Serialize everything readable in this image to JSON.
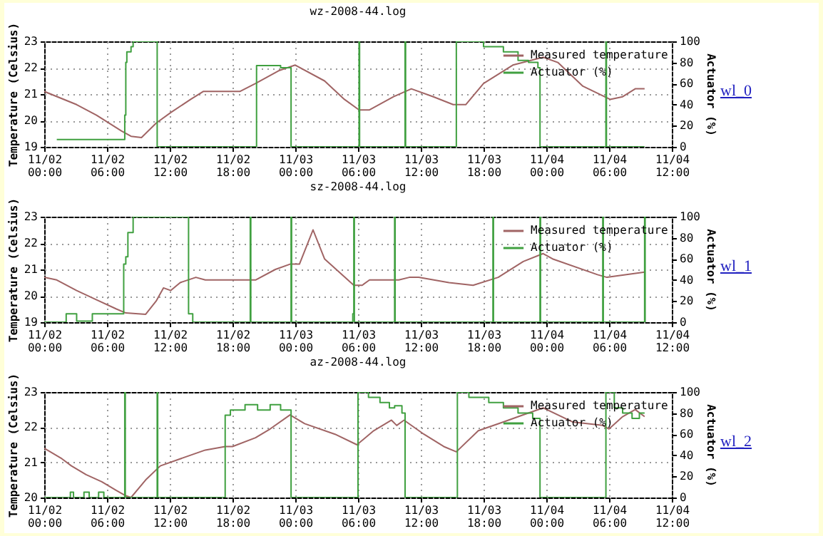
{
  "chart_data": [
    {
      "type": "line",
      "title": "wz-2008-44.log",
      "ylabel": "Temperature (Celsius)",
      "y2label": "Actuator (%)",
      "xlim": [
        "--11-02T00:00",
        "--11-04T12:00"
      ],
      "xticks": [
        {
          "value": "--11-02T00:00",
          "label": "11/02\n00:00"
        },
        {
          "value": "--11-02T06:00",
          "label": "11/02\n06:00"
        },
        {
          "value": "--11-02T12:00",
          "label": "11/02\n12:00"
        },
        {
          "value": "--11-02T18:00",
          "label": "11/02\n18:00"
        },
        {
          "value": "--11-03T00:00",
          "label": "11/03\n00:00"
        },
        {
          "value": "--11-03T06:00",
          "label": "11/03\n06:00"
        },
        {
          "value": "--11-03T12:00",
          "label": "11/03\n12:00"
        },
        {
          "value": "--11-03T18:00",
          "label": "11/03\n18:00"
        },
        {
          "value": "--11-04T00:00",
          "label": "11/04\n00:00"
        },
        {
          "value": "--11-04T06:00",
          "label": "11/04\n06:00"
        },
        {
          "value": "--11-04T12:00",
          "label": "11/04\n12:00"
        }
      ],
      "ylim": [
        19,
        23
      ],
      "yticks": [
        19,
        20,
        21,
        22,
        23
      ],
      "y2lim": [
        0,
        100
      ],
      "y2ticks": [
        0,
        20,
        40,
        60,
        80,
        100
      ],
      "grid": true,
      "legend": "top right",
      "annotations": [
        "wl_0"
      ],
      "series": [
        {
          "name": "Measured temperature",
          "type": "line",
          "color": "#a06464",
          "x": [
            "--11-02T00:00",
            "--11-02T03:06",
            "--11-02T05:00",
            "--11-02T07:24",
            "--11-02T08:18",
            "--11-02T09:18",
            "--11-02T10:42",
            "--11-02T12:06",
            "--11-02T14:00",
            "--11-02T15:12",
            "--11-02T18:42",
            "--11-02T20:12",
            "--11-02T22:30",
            "--11-03T00:00",
            "--11-03T02:48",
            "--11-03T04:42",
            "--11-03T06:06",
            "--11-03T07:06",
            "--11-03T09:24",
            "--11-03T11:06",
            "--11-03T13:12",
            "--11-03T15:06",
            "--11-03T16:18",
            "--11-03T18:00",
            "--11-03T20:48",
            "--11-03T23:42",
            "--11-04T01:06",
            "--11-04T03:30",
            "--11-04T06:06",
            "--11-04T07:18",
            "--11-04T08:30",
            "--11-04T09:24"
          ],
          "values": [
            21.1,
            20.6,
            20.2,
            19.6,
            19.4,
            19.35,
            19.9,
            20.3,
            20.8,
            21.1,
            21.1,
            21.4,
            21.9,
            22.1,
            21.5,
            20.8,
            20.4,
            20.4,
            20.9,
            21.2,
            20.9,
            20.6,
            20.6,
            21.4,
            22.1,
            22.4,
            22.2,
            21.3,
            20.8,
            20.9,
            21.2,
            21.2
          ]
        },
        {
          "name": "Actuator (%)",
          "type": "step",
          "axis": "y2",
          "color": "#40a040",
          "x": [
            "--11-02T01:12",
            "--11-02T07:42",
            "--11-02T07:48",
            "--11-02T07:54",
            "--11-02T08:18",
            "--11-02T08:30",
            "--11-02T10:48",
            "--11-02T20:18",
            "--11-02T22:36",
            "--11-02T23:36",
            "--11-03T06:06",
            "--11-03T06:09",
            "--11-03T10:30",
            "--11-03T10:33",
            "--11-03T15:24",
            "--11-03T18:00",
            "--11-03T19:54",
            "--11-03T21:18",
            "--11-03T22:18",
            "--11-03T23:12",
            "--11-03T23:24",
            "--11-04T05:42",
            "--11-04T05:45",
            "--11-04T09:24"
          ],
          "values": [
            7,
            30,
            80,
            90,
            95,
            100,
            0,
            77,
            75,
            0,
            100,
            0,
            100,
            0,
            100,
            95,
            90,
            82,
            80,
            75,
            0,
            100,
            0,
            0
          ]
        }
      ]
    },
    {
      "type": "line",
      "title": "sz-2008-44.log",
      "ylabel": "Temperature (Celsius)",
      "y2label": "Actuator (%)",
      "xlim": [
        "--11-02T00:00",
        "--11-04T12:00"
      ],
      "xticks": [
        {
          "value": "--11-02T00:00",
          "label": "11/02\n00:00"
        },
        {
          "value": "--11-02T06:00",
          "label": "11/02\n06:00"
        },
        {
          "value": "--11-02T12:00",
          "label": "11/02\n12:00"
        },
        {
          "value": "--11-02T18:00",
          "label": "11/02\n18:00"
        },
        {
          "value": "--11-03T00:00",
          "label": "11/03\n00:00"
        },
        {
          "value": "--11-03T06:00",
          "label": "11/03\n06:00"
        },
        {
          "value": "--11-03T12:00",
          "label": "11/03\n12:00"
        },
        {
          "value": "--11-03T18:00",
          "label": "11/03\n18:00"
        },
        {
          "value": "--11-04T00:00",
          "label": "11/04\n00:00"
        },
        {
          "value": "--11-04T06:00",
          "label": "11/04\n06:00"
        },
        {
          "value": "--11-04T12:00",
          "label": "11/04\n12:00"
        }
      ],
      "ylim": [
        19,
        23
      ],
      "yticks": [
        19,
        20,
        21,
        22,
        23
      ],
      "y2lim": [
        0,
        100
      ],
      "y2ticks": [
        0,
        20,
        40,
        60,
        80,
        100
      ],
      "grid": true,
      "legend": "top right",
      "annotations": [
        "wl_1"
      ],
      "series": [
        {
          "name": "Measured temperature",
          "type": "line",
          "color": "#a06464",
          "x": [
            "--11-02T00:00",
            "--11-02T01:12",
            "--11-02T03:06",
            "--11-02T05:00",
            "--11-02T06:54",
            "--11-02T07:48",
            "--11-02T09:42",
            "--11-02T10:42",
            "--11-02T11:24",
            "--11-02T12:06",
            "--11-02T13:00",
            "--11-02T14:30",
            "--11-02T15:24",
            "--11-02T20:12",
            "--11-02T22:06",
            "--11-02T23:30",
            "--11-03T00:24",
            "--11-03T01:42",
            "--11-03T02:48",
            "--11-03T04:12",
            "--11-03T05:36",
            "--11-03T06:24",
            "--11-03T07:06",
            "--11-03T09:54",
            "--11-03T10:54",
            "--11-03T11:48",
            "--11-03T14:42",
            "--11-03T17:00",
            "--11-03T19:24",
            "--11-03T21:48",
            "--11-03T23:42",
            "--11-04T00:36",
            "--11-04T04:54",
            "--11-04T05:48",
            "--11-04T09:24"
          ],
          "values": [
            20.7,
            20.6,
            20.2,
            19.85,
            19.5,
            19.35,
            19.3,
            19.8,
            20.3,
            20.2,
            20.5,
            20.7,
            20.6,
            20.6,
            21,
            21.2,
            21.2,
            22.5,
            21.4,
            20.9,
            20.4,
            20.4,
            20.6,
            20.6,
            20.7,
            20.7,
            20.5,
            20.4,
            20.7,
            21.3,
            21.6,
            21.4,
            20.8,
            20.7,
            20.9
          ]
        },
        {
          "name": "Actuator (%)",
          "type": "step",
          "axis": "y2",
          "color": "#40a040",
          "x": [
            "--11-02T00:00",
            "--11-02T02:06",
            "--11-02T03:06",
            "--11-02T04:36",
            "--11-02T07:36",
            "--11-02T07:48",
            "--11-02T08:00",
            "--11-02T08:30",
            "--11-02T13:48",
            "--11-02T14:12",
            "--11-02T19:42",
            "--11-02T19:45",
            "--11-02T23:36",
            "--11-02T23:39",
            "--11-03T05:30",
            "--11-03T05:36",
            "--11-03T05:39",
            "--11-03T09:30",
            "--11-03T09:33",
            "--11-03T18:54",
            "--11-03T18:57",
            "--11-03T23:24",
            "--11-03T23:27",
            "--11-04T05:24",
            "--11-04T05:27",
            "--11-04T09:24",
            "--11-04T09:27"
          ],
          "values": [
            0,
            8,
            1,
            8,
            55,
            62,
            85,
            100,
            8,
            0,
            100,
            0,
            100,
            0,
            8,
            100,
            0,
            100,
            0,
            100,
            0,
            100,
            0,
            100,
            0,
            100,
            0
          ]
        }
      ]
    },
    {
      "type": "line",
      "title": "az-2008-44.log",
      "ylabel": "Temperature (Celsius)",
      "y2label": "Actuator (%)",
      "xlim": [
        "--11-02T00:00",
        "--11-04T12:00"
      ],
      "xticks": [
        {
          "value": "--11-02T00:00",
          "label": "11/02\n00:00"
        },
        {
          "value": "--11-02T06:00",
          "label": "11/02\n06:00"
        },
        {
          "value": "--11-02T12:00",
          "label": "11/02\n12:00"
        },
        {
          "value": "--11-02T18:00",
          "label": "11/02\n18:00"
        },
        {
          "value": "--11-03T00:00",
          "label": "11/03\n00:00"
        },
        {
          "value": "--11-03T06:00",
          "label": "11/03\n06:00"
        },
        {
          "value": "--11-03T12:00",
          "label": "11/03\n12:00"
        },
        {
          "value": "--11-03T18:00",
          "label": "11/03\n18:00"
        },
        {
          "value": "--11-04T00:00",
          "label": "11/04\n00:00"
        },
        {
          "value": "--11-04T06:00",
          "label": "11/04\n06:00"
        },
        {
          "value": "--11-04T12:00",
          "label": "11/04\n12:00"
        }
      ],
      "ylim": [
        20,
        23
      ],
      "yticks": [
        20,
        21,
        22,
        23
      ],
      "y2lim": [
        0,
        100
      ],
      "y2ticks": [
        0,
        20,
        40,
        60,
        80,
        100
      ],
      "grid": true,
      "legend": "top right",
      "annotations": [
        "wl_2"
      ],
      "series": [
        {
          "name": "Measured temperature",
          "type": "line",
          "color": "#a06464",
          "x": [
            "--11-02T00:00",
            "--11-02T01:42",
            "--11-02T02:36",
            "--11-02T04:00",
            "--11-02T05:30",
            "--11-02T06:54",
            "--11-02T07:48",
            "--11-02T08:18",
            "--11-02T09:42",
            "--11-02T11:06",
            "--11-02T13:00",
            "--11-02T15:24",
            "--11-02T17:18",
            "--11-02T18:00",
            "--11-02T20:12",
            "--11-02T21:36",
            "--11-02T23:30",
            "--11-03T00:54",
            "--11-03T03:48",
            "--11-03T05:54",
            "--11-03T07:30",
            "--11-03T09:12",
            "--11-03T09:42",
            "--11-03T10:24",
            "--11-03T12:18",
            "--11-03T14:12",
            "--11-03T15:24",
            "--11-03T17:30",
            "--11-03T19:54",
            "--11-03T21:48",
            "--11-03T23:42",
            "--11-04T02:30",
            "--11-04T05:24",
            "--11-04T06:00",
            "--11-04T07:18",
            "--11-04T08:30",
            "--11-04T09:24"
          ],
          "values": [
            21.4,
            21.1,
            20.9,
            20.65,
            20.45,
            20.2,
            20.05,
            20,
            20.5,
            20.9,
            21.1,
            21.35,
            21.45,
            21.45,
            21.7,
            21.95,
            22.35,
            22.1,
            21.8,
            21.5,
            21.9,
            22.2,
            22.05,
            22.2,
            21.8,
            21.45,
            21.3,
            21.9,
            22.15,
            22.35,
            22.55,
            22.15,
            22.05,
            21.95,
            22.3,
            22.5,
            22.3
          ]
        },
        {
          "name": "Actuator (%)",
          "type": "step",
          "axis": "y2",
          "color": "#40a040",
          "x": [
            "--11-02T00:00",
            "--11-02T02:30",
            "--11-02T02:48",
            "--11-02T03:48",
            "--11-02T04:18",
            "--11-02T05:12",
            "--11-02T05:42",
            "--11-02T07:42",
            "--11-02T07:45",
            "--11-02T10:48",
            "--11-02T10:51",
            "--11-02T17:18",
            "--11-02T17:48",
            "--11-02T19:12",
            "--11-02T20:24",
            "--11-02T21:36",
            "--11-02T22:36",
            "--11-02T23:36",
            "--11-03T06:00",
            "--11-03T07:00",
            "--11-03T08:06",
            "--11-03T09:00",
            "--11-03T09:30",
            "--11-03T10:12",
            "--11-03T10:30",
            "--11-03T15:30",
            "--11-03T16:36",
            "--11-03T18:30",
            "--11-03T19:54",
            "--11-03T21:18",
            "--11-03T22:42",
            "--11-03T23:24",
            "--11-04T05:42",
            "--11-04T06:30",
            "--11-04T07:18",
            "--11-04T08:12",
            "--11-04T08:54",
            "--11-04T09:24"
          ],
          "values": [
            0,
            5,
            0,
            5,
            0,
            5,
            0,
            100,
            0,
            100,
            0,
            78,
            83,
            88,
            83,
            88,
            83,
            0,
            100,
            95,
            90,
            85,
            87,
            80,
            0,
            100,
            95,
            90,
            85,
            80,
            75,
            0,
            100,
            85,
            80,
            75,
            80,
            80
          ]
        }
      ]
    }
  ]
}
